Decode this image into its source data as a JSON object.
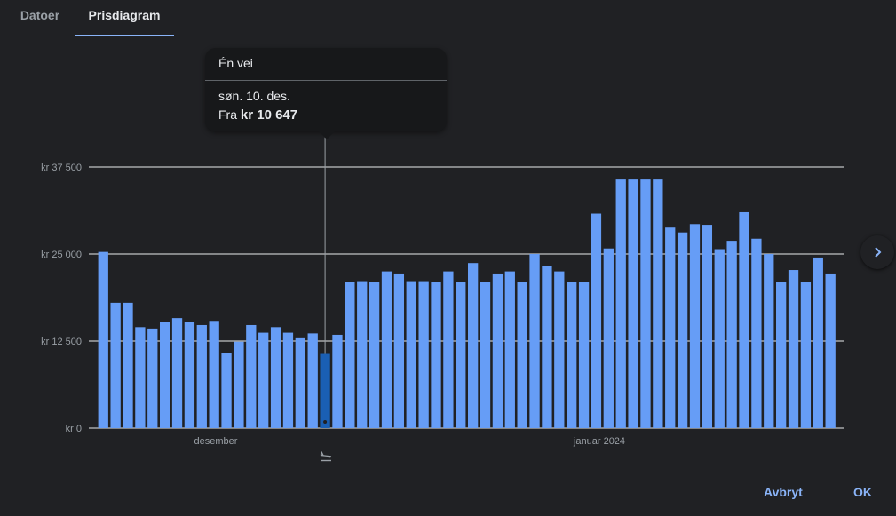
{
  "tabs": [
    {
      "label": "Datoer"
    },
    {
      "label": "Prisdiagram"
    }
  ],
  "tooltip": {
    "title": "Én vei",
    "date": "søn. 10. des.",
    "price_prefix": "Fra",
    "price": "kr 10 647"
  },
  "icons": {
    "departure": "plane-departure-icon",
    "next": "chevron-right-icon"
  },
  "colors": {
    "bar": "#669df6",
    "bar_selected": "#1a5fb4",
    "accent": "#8ab4f8",
    "grid": "#e8eaed",
    "axis_text": "#9aa0a6"
  },
  "buttons": {
    "cancel": "Avbryt",
    "ok": "OK"
  },
  "chart_data": {
    "type": "bar",
    "title": "",
    "xlabel": "",
    "ylabel": "",
    "y_ticks": [
      "kr 0",
      "kr 12 500",
      "kr 25 000",
      "kr 37 500"
    ],
    "x_labels": [
      "desember",
      "januar 2024"
    ],
    "ylim": [
      0,
      37500
    ],
    "grid": true,
    "selected_index": 18,
    "values": [
      25300,
      18000,
      18000,
      14500,
      14300,
      15200,
      15800,
      15200,
      14800,
      15400,
      10800,
      12400,
      14800,
      13700,
      14500,
      13700,
      12900,
      13600,
      10647,
      13400,
      21000,
      21100,
      21000,
      22500,
      22200,
      21100,
      21100,
      21000,
      22500,
      21000,
      23700,
      21000,
      22200,
      22500,
      21000,
      25000,
      23300,
      22500,
      21000,
      21000,
      30800,
      25800,
      35700,
      35700,
      35700,
      35700,
      28800,
      28100,
      29300,
      29200,
      25700,
      26900,
      31000,
      27200,
      25000,
      21000,
      22700,
      21000,
      24500,
      22200
    ]
  }
}
